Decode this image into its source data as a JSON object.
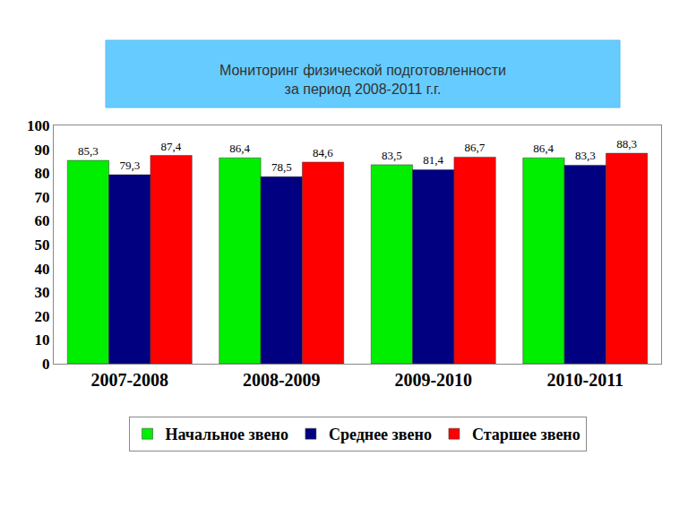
{
  "chart_data": {
    "type": "bar",
    "title": "Мониторинг физической подготовленности\nза период 2008-2011 г.г.",
    "categories": [
      "2007-2008",
      "2008-2009",
      "2009-2010",
      "2010-2011"
    ],
    "series": [
      {
        "name": "Начальное звено",
        "color": "#00ee00",
        "values": [
          85.3,
          86.4,
          83.5,
          86.4
        ],
        "value_labels": [
          "85,3",
          "86,4",
          "83,5",
          "86,4"
        ]
      },
      {
        "name": "Среднее звено",
        "color": "#000080",
        "values": [
          79.3,
          78.5,
          81.4,
          83.3
        ],
        "value_labels": [
          "79,3",
          "78,5",
          "81,4",
          "83,3"
        ]
      },
      {
        "name": "Старшее звено",
        "color": "#ff0000",
        "values": [
          87.4,
          84.6,
          86.7,
          88.3
        ],
        "value_labels": [
          "87,4",
          "84,6",
          "86,7",
          "88,3"
        ]
      }
    ],
    "ylim": [
      0,
      100
    ],
    "yticks": [
      0,
      10,
      20,
      30,
      40,
      50,
      60,
      70,
      80,
      90,
      100
    ],
    "grid": false,
    "legend": "bottom",
    "data_labels": true
  }
}
